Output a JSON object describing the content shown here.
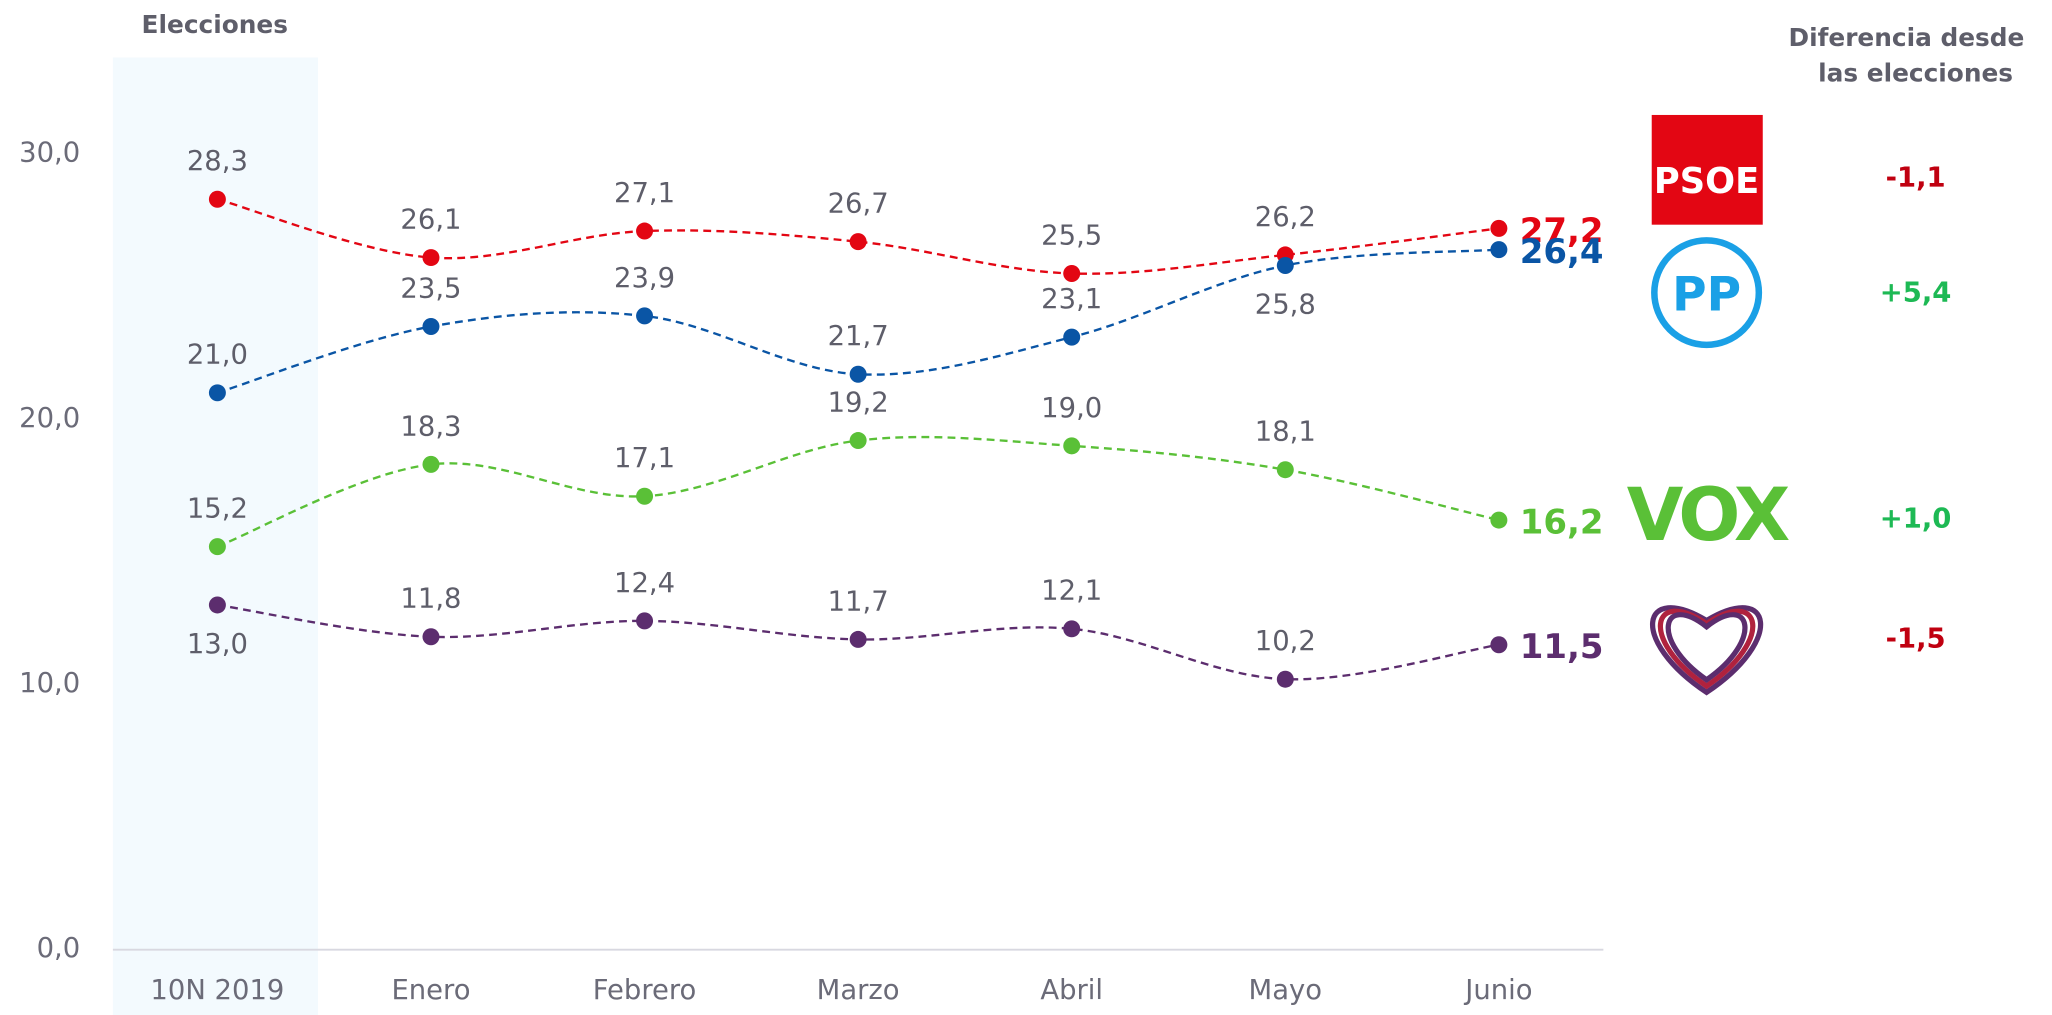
{
  "chart_data": {
    "type": "line",
    "header_left": "Elecciones",
    "header_right": [
      "Diferencia desde",
      "las elecciones"
    ],
    "categories": [
      "10N 2019",
      "Enero",
      "Febrero",
      "Marzo",
      "Abril",
      "Mayo",
      "Junio"
    ],
    "ylim": [
      0,
      30
    ],
    "yticks": [
      {
        "value": 0,
        "label": "0,0"
      },
      {
        "value": 10,
        "label": "10,0"
      },
      {
        "value": 20,
        "label": "20,0"
      },
      {
        "value": 30,
        "label": "30,0"
      }
    ],
    "series": [
      {
        "name": "PSOE",
        "color": "#e30613",
        "values": [
          28.3,
          26.1,
          27.1,
          26.7,
          25.5,
          26.2,
          27.2
        ],
        "value_labels": [
          "28,3",
          "26,1",
          "27,1",
          "26,7",
          "25,5",
          "26,2",
          "27,2"
        ],
        "difference": "-1,1",
        "difference_color": "#c00010"
      },
      {
        "name": "PP",
        "color": "#0a55a5",
        "values": [
          21.0,
          23.5,
          23.9,
          21.7,
          23.1,
          25.8,
          26.4
        ],
        "value_labels": [
          "21,0",
          "23,5",
          "23,9",
          "21,7",
          "23,1",
          "25,8",
          "26,4"
        ],
        "difference": "+5,4",
        "difference_color": "#1db954"
      },
      {
        "name": "VOX",
        "color": "#5ac037",
        "values": [
          15.2,
          18.3,
          17.1,
          19.2,
          19.0,
          18.1,
          16.2
        ],
        "value_labels": [
          "15,2",
          "18,3",
          "17,1",
          "19,2",
          "19,0",
          "18,1",
          "16,2"
        ],
        "difference": "+1,0",
        "difference_color": "#1db954"
      },
      {
        "name": null,
        "color": "#5c2d6e",
        "values": [
          13.0,
          11.8,
          12.4,
          11.7,
          12.1,
          10.2,
          11.5
        ],
        "value_labels": [
          "13,0",
          "11,8",
          "12,4",
          "11,7",
          "12,1",
          "10,2",
          "11,5"
        ],
        "difference": "-1,5",
        "difference_color": "#c00010"
      }
    ]
  }
}
